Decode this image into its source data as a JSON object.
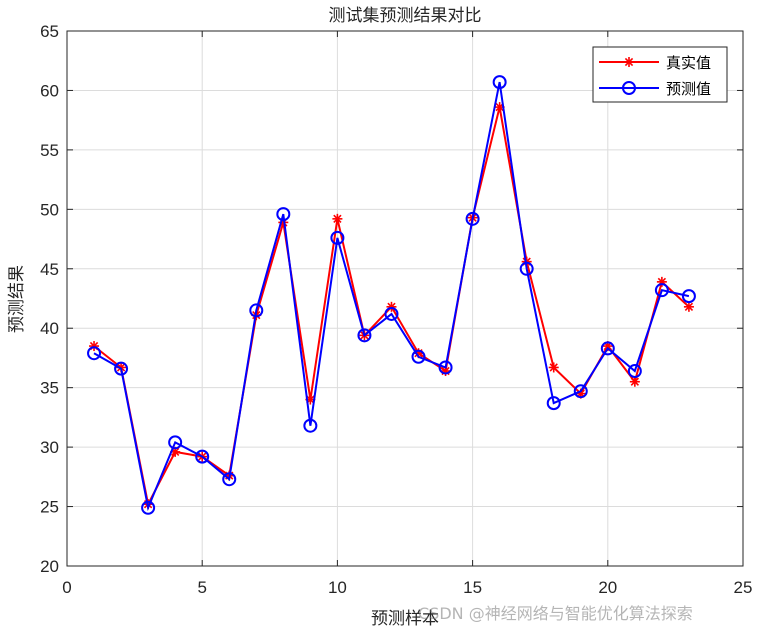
{
  "chart_data": {
    "type": "line",
    "title": "测试集预测结果对比",
    "xlabel": "预测样本",
    "ylabel": "预测结果",
    "xlim": [
      0,
      25
    ],
    "ylim": [
      20,
      65
    ],
    "xticks": [
      0,
      5,
      10,
      15,
      20,
      25
    ],
    "yticks": [
      20,
      25,
      30,
      35,
      40,
      45,
      50,
      55,
      60,
      65
    ],
    "grid": true,
    "legend_position": "upper right",
    "x": [
      1,
      2,
      3,
      4,
      5,
      6,
      7,
      8,
      9,
      10,
      11,
      12,
      13,
      14,
      15,
      16,
      17,
      18,
      19,
      20,
      21,
      22,
      23
    ],
    "series": [
      {
        "name": "真实值",
        "color": "#ff0000",
        "marker": "asterisk",
        "values": [
          38.5,
          36.7,
          25.2,
          29.6,
          29.2,
          27.6,
          41.1,
          48.9,
          34.0,
          49.2,
          39.4,
          41.8,
          37.9,
          36.4,
          49.3,
          58.6,
          45.6,
          36.7,
          34.5,
          38.5,
          35.5,
          43.9,
          41.8
        ]
      },
      {
        "name": "预测值",
        "color": "#0000ff",
        "marker": "circle",
        "values": [
          37.9,
          36.6,
          24.9,
          30.4,
          29.2,
          27.3,
          41.5,
          49.6,
          31.8,
          47.6,
          39.4,
          41.2,
          37.6,
          36.7,
          49.2,
          60.7,
          45.0,
          33.7,
          34.7,
          38.3,
          36.4,
          43.2,
          42.7
        ]
      }
    ]
  },
  "watermark": "CSDN @神经网络与智能优化算法探索"
}
